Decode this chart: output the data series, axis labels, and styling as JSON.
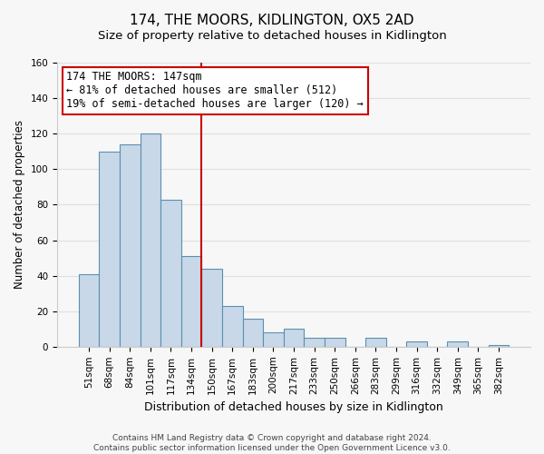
{
  "title": "174, THE MOORS, KIDLINGTON, OX5 2AD",
  "subtitle": "Size of property relative to detached houses in Kidlington",
  "xlabel": "Distribution of detached houses by size in Kidlington",
  "ylabel": "Number of detached properties",
  "bar_labels": [
    "51sqm",
    "68sqm",
    "84sqm",
    "101sqm",
    "117sqm",
    "134sqm",
    "150sqm",
    "167sqm",
    "183sqm",
    "200sqm",
    "217sqm",
    "233sqm",
    "250sqm",
    "266sqm",
    "283sqm",
    "299sqm",
    "316sqm",
    "332sqm",
    "349sqm",
    "365sqm",
    "382sqm"
  ],
  "bar_values": [
    41,
    110,
    114,
    120,
    83,
    51,
    44,
    23,
    16,
    8,
    10,
    5,
    5,
    0,
    5,
    0,
    3,
    0,
    3,
    0,
    1
  ],
  "bar_color": "#c8d8e8",
  "bar_edge_color": "#5a90b0",
  "annotation_line1": "174 THE MOORS: 147sqm",
  "annotation_line2": "← 81% of detached houses are smaller (512)",
  "annotation_line3": "19% of semi-detached houses are larger (120) →",
  "annotation_box_color": "#ffffff",
  "annotation_box_edge_color": "#cc0000",
  "vline_x": 6,
  "vline_color": "#cc0000",
  "ylim": [
    0,
    160
  ],
  "yticks": [
    0,
    20,
    40,
    60,
    80,
    100,
    120,
    140,
    160
  ],
  "grid_color": "#e0e0e0",
  "background_color": "#f7f7f7",
  "footnote": "Contains HM Land Registry data © Crown copyright and database right 2024.\nContains public sector information licensed under the Open Government Licence v3.0.",
  "title_fontsize": 11,
  "subtitle_fontsize": 9.5,
  "xlabel_fontsize": 9,
  "ylabel_fontsize": 8.5,
  "tick_fontsize": 7.5,
  "annotation_fontsize": 8.5,
  "footnote_fontsize": 6.5
}
